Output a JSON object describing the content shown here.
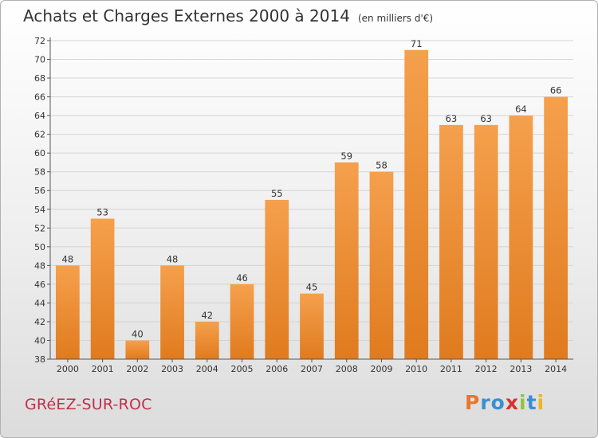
{
  "chart_data": {
    "type": "bar",
    "title": "Achats et Charges Externes 2000 à 2014",
    "subtitle": "(en milliers d'€)",
    "categories": [
      "2000",
      "2001",
      "2002",
      "2003",
      "2004",
      "2005",
      "2006",
      "2007",
      "2008",
      "2009",
      "2010",
      "2011",
      "2012",
      "2013",
      "2014"
    ],
    "values": [
      48,
      53,
      40,
      48,
      42,
      46,
      55,
      45,
      59,
      58,
      71,
      63,
      63,
      64,
      66
    ],
    "ylim": [
      38,
      72
    ],
    "ytick_step": 2,
    "grid": true,
    "legend": "none",
    "bar_color_light": "#f5a04d",
    "bar_color_dark": "#e07b1e"
  },
  "footer": {
    "commune": "GRéEZ-SUR-ROC",
    "commune_color": "#c0304a",
    "logo": {
      "letters": [
        "P",
        "r",
        "o",
        "x",
        "i",
        "t",
        "i"
      ],
      "colors": [
        "#e8772a",
        "#3a8fd1",
        "#3a8fd1",
        "#d8322a",
        "#8cc63f",
        "#3a8fd1",
        "#f0b323"
      ]
    }
  }
}
